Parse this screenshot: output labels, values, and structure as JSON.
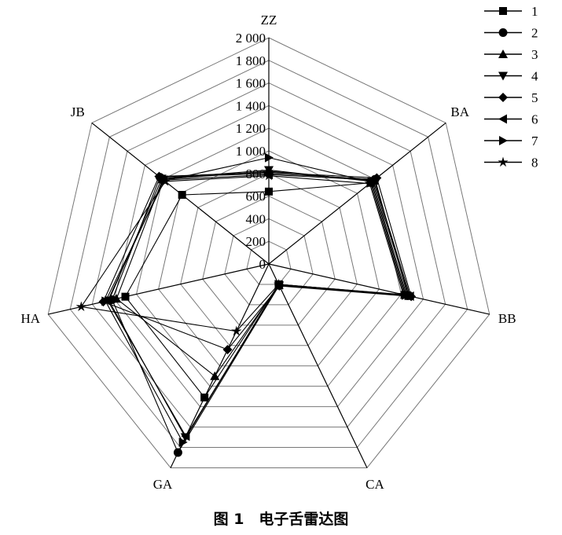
{
  "chart_data": {
    "type": "radar",
    "axes": [
      "ZZ",
      "BA",
      "BB",
      "CA",
      "GA",
      "HA",
      "JB"
    ],
    "range": [
      0,
      2000
    ],
    "tick_labels": [
      "0",
      "200",
      "400",
      "600",
      "800",
      "1 000",
      "1 200",
      "1 400",
      "1 600",
      "1 800",
      "2 000"
    ],
    "ticks": [
      0,
      200,
      400,
      600,
      800,
      1000,
      1200,
      1400,
      1600,
      1800,
      2000
    ],
    "legend_position": "top-right",
    "series": [
      {
        "name": "1",
        "marker": "square",
        "values": [
          640,
          1150,
          1230,
          200,
          1310,
          1300,
          980
        ]
      },
      {
        "name": "2",
        "marker": "circle",
        "values": [
          800,
          1200,
          1260,
          210,
          1850,
          1420,
          1230
        ]
      },
      {
        "name": "3",
        "marker": "triangle-up",
        "values": [
          820,
          1180,
          1270,
          205,
          1100,
          1380,
          1200
        ]
      },
      {
        "name": "4",
        "marker": "triangle-down",
        "values": [
          830,
          1170,
          1250,
          210,
          1700,
          1450,
          1210
        ]
      },
      {
        "name": "5",
        "marker": "diamond",
        "values": [
          810,
          1220,
          1290,
          215,
          840,
          1500,
          1240
        ]
      },
      {
        "name": "6",
        "marker": "triangle-left",
        "values": [
          790,
          1190,
          1280,
          205,
          1690,
          1460,
          1190
        ]
      },
      {
        "name": "7",
        "marker": "triangle-right",
        "values": [
          940,
          1160,
          1240,
          200,
          1750,
          1480,
          1180
        ]
      },
      {
        "name": "8",
        "marker": "star",
        "values": [
          780,
          1140,
          1220,
          200,
          660,
          1700,
          1170
        ]
      }
    ]
  },
  "caption": "图 1　电子舌雷达图"
}
